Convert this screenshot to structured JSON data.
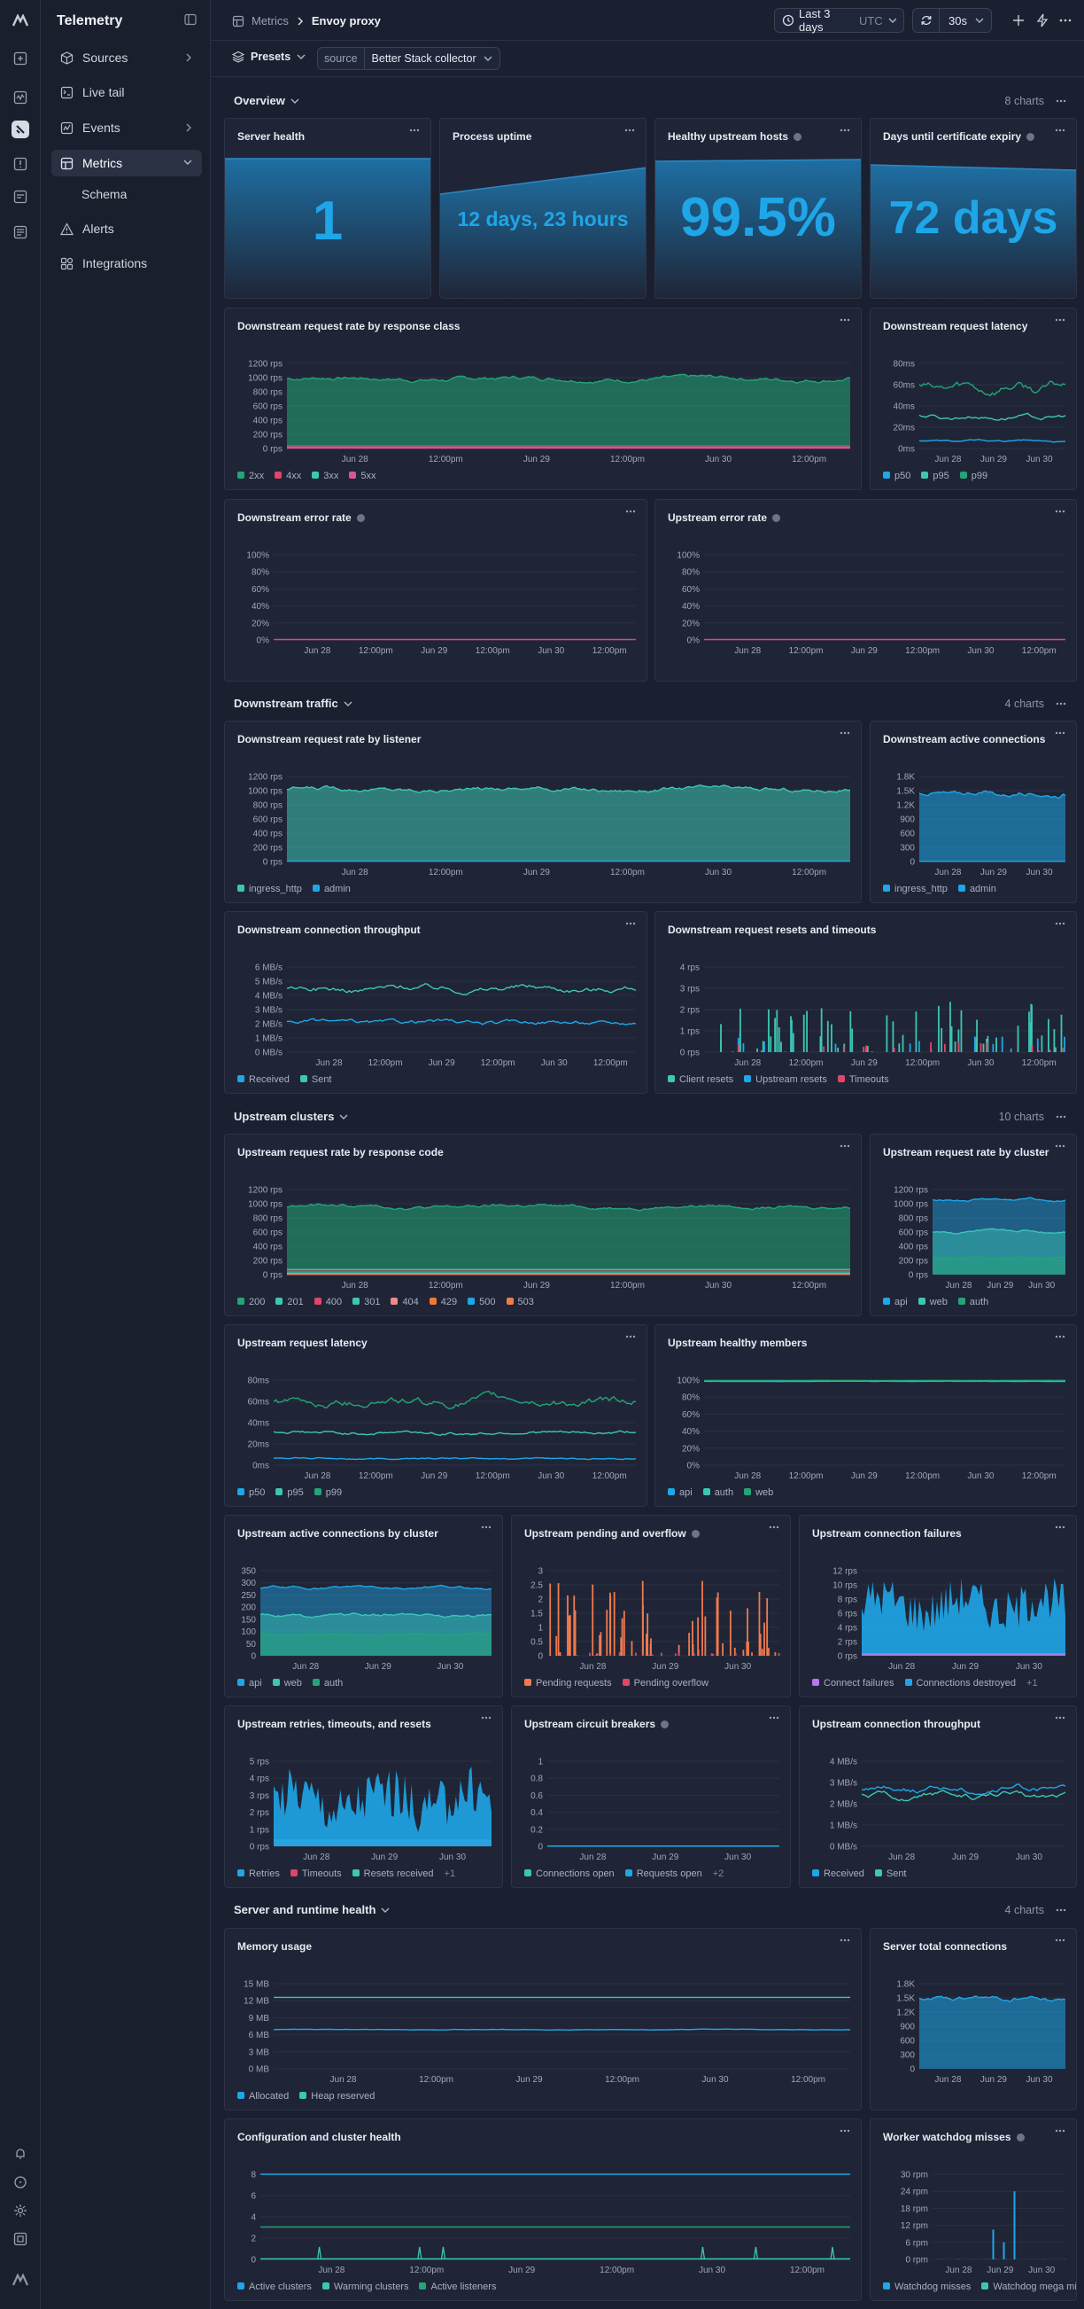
{
  "app": {
    "name": "Telemetry"
  },
  "sidebar": {
    "items": [
      {
        "label": "Sources"
      },
      {
        "label": "Live tail"
      },
      {
        "label": "Events"
      },
      {
        "label": "Metrics"
      },
      {
        "label": "Schema"
      },
      {
        "label": "Alerts"
      },
      {
        "label": "Integrations"
      }
    ]
  },
  "breadcrumb": {
    "parent": "Metrics",
    "current": "Envoy proxy"
  },
  "toolbar": {
    "timerange": "Last 3 days",
    "timezone": "UTC",
    "refresh": "30s"
  },
  "presets": {
    "label": "Presets",
    "filter_key": "source",
    "filter_value": "Better Stack collector"
  },
  "sections": [
    {
      "title": "Overview",
      "count": "8 charts"
    },
    {
      "title": "Downstream traffic",
      "count": "4 charts"
    },
    {
      "title": "Upstream clusters",
      "count": "10 charts"
    },
    {
      "title": "Server and runtime health",
      "count": "4 charts"
    }
  ],
  "stats": [
    {
      "title": "Server health",
      "value": "1"
    },
    {
      "title": "Process uptime",
      "value": "12 days, 23 hours"
    },
    {
      "title": "Healthy upstream hosts",
      "value": "99.5%"
    },
    {
      "title": "Days until certificate expiry",
      "value": "72 days"
    }
  ],
  "colors": {
    "green": "#23a577",
    "teal": "#3cc6b4",
    "blue": "#1ea6e8",
    "red": "#e0456a",
    "pink": "#d8568c",
    "orange": "#f07a4e",
    "purple": "#b478e8",
    "dark": "#2b3042"
  },
  "charts": [
    {
      "id": "c_drr",
      "title": "Downstream request rate by response class",
      "info": false,
      "type": "area",
      "yticks": [
        "1200 rps",
        "1000 rps",
        "800 rps",
        "600 rps",
        "400 rps",
        "200 rps",
        "0 rps"
      ],
      "xticks": [
        "Jun 28",
        "12:00pm",
        "Jun 29",
        "12:00pm",
        "Jun 30",
        "12:00pm"
      ],
      "series": [
        {
          "name": "2xx",
          "color": "#23a577",
          "level": 0.82,
          "noise": 0.05,
          "fill": true
        },
        {
          "name": "4xx",
          "color": "#e0456a",
          "level": 0.03,
          "noise": 0,
          "fill": false
        },
        {
          "name": "3xx",
          "color": "#3cc6b4",
          "level": 0.01,
          "noise": 0,
          "fill": false
        },
        {
          "name": "5xx",
          "color": "#d8568c",
          "level": 0.005,
          "noise": 0,
          "fill": false
        }
      ]
    },
    {
      "id": "c_drl",
      "title": "Downstream request latency",
      "info": false,
      "type": "line",
      "yticks": [
        "80ms",
        "60ms",
        "40ms",
        "20ms",
        "0ms"
      ],
      "xticks": [
        "Jun 28",
        "Jun 29",
        "Jun 30"
      ],
      "series": [
        {
          "name": "p50",
          "color": "#1ea6e8",
          "level": 0.09,
          "noise": 0.02,
          "fill": false
        },
        {
          "name": "p95",
          "color": "#3cc6b4",
          "level": 0.37,
          "noise": 0.05,
          "fill": false
        },
        {
          "name": "p99",
          "color": "#23a577",
          "level": 0.72,
          "noise": 0.12,
          "fill": false
        }
      ]
    },
    {
      "id": "c_der",
      "title": "Downstream error rate",
      "info": true,
      "type": "line",
      "yticks": [
        "100%",
        "80%",
        "60%",
        "40%",
        "20%",
        "0%"
      ],
      "xticks": [
        "Jun 28",
        "12:00pm",
        "Jun 29",
        "12:00pm",
        "Jun 30",
        "12:00pm"
      ],
      "series": [
        {
          "name": "",
          "color": "#e0456a",
          "level": 0.005,
          "noise": 0,
          "fill": false
        }
      ]
    },
    {
      "id": "c_uer",
      "title": "Upstream error rate",
      "info": true,
      "type": "line",
      "yticks": [
        "100%",
        "80%",
        "60%",
        "40%",
        "20%",
        "0%"
      ],
      "xticks": [
        "Jun 28",
        "12:00pm",
        "Jun 29",
        "12:00pm",
        "Jun 30",
        "12:00pm"
      ],
      "series": [
        {
          "name": "",
          "color": "#e0456a",
          "level": 0.005,
          "noise": 0,
          "fill": false
        }
      ]
    },
    {
      "id": "c_drl2",
      "title": "Downstream request rate by listener",
      "info": false,
      "type": "area",
      "yticks": [
        "1200 rps",
        "1000 rps",
        "800 rps",
        "600 rps",
        "400 rps",
        "200 rps",
        "0 rps"
      ],
      "xticks": [
        "Jun 28",
        "12:00pm",
        "Jun 29",
        "12:00pm",
        "Jun 30",
        "12:00pm"
      ],
      "series": [
        {
          "name": "ingress_http",
          "color": "#3cc6b4",
          "level": 0.85,
          "noise": 0.05,
          "fill": true
        },
        {
          "name": "admin",
          "color": "#1ea6e8",
          "level": 0.005,
          "noise": 0,
          "fill": false
        }
      ]
    },
    {
      "id": "c_dac",
      "title": "Downstream active connections",
      "info": false,
      "type": "area",
      "yticks": [
        "1.8K",
        "1.5K",
        "1.2K",
        "900",
        "600",
        "300",
        "0"
      ],
      "xticks": [
        "Jun 28",
        "Jun 29",
        "Jun 30"
      ],
      "series": [
        {
          "name": "ingress_http",
          "color": "#1ea6e8",
          "level": 0.8,
          "noise": 0.06,
          "fill": true
        },
        {
          "name": "admin",
          "color": "#1ea6e8",
          "level": 0.003,
          "noise": 0,
          "fill": false
        }
      ]
    },
    {
      "id": "c_dct",
      "title": "Downstream connection throughput",
      "info": false,
      "type": "line",
      "yticks": [
        "6 MB/s",
        "5 MB/s",
        "4 MB/s",
        "3 MB/s",
        "2 MB/s",
        "1 MB/s",
        "0 MB/s"
      ],
      "xticks": [
        "Jun 28",
        "12:00pm",
        "Jun 29",
        "12:00pm",
        "Jun 30",
        "12:00pm"
      ],
      "series": [
        {
          "name": "Received",
          "color": "#1ea6e8",
          "level": 0.35,
          "noise": 0.05,
          "fill": false
        },
        {
          "name": "Sent",
          "color": "#3cc6b4",
          "level": 0.75,
          "noise": 0.07,
          "fill": false
        }
      ]
    },
    {
      "id": "c_drrt",
      "title": "Downstream request resets and timeouts",
      "info": false,
      "type": "spike",
      "yticks": [
        "4 rps",
        "3 rps",
        "2 rps",
        "1 rps",
        "0 rps"
      ],
      "xticks": [
        "Jun 28",
        "12:00pm",
        "Jun 29",
        "12:00pm",
        "Jun 30",
        "12:00pm"
      ],
      "series": [
        {
          "name": "Client resets",
          "color": "#3cc6b4",
          "level": 0.6,
          "noise": 0,
          "fill": true
        },
        {
          "name": "Upstream resets",
          "color": "#1ea6e8",
          "level": 0.3,
          "noise": 0,
          "fill": true
        },
        {
          "name": "Timeouts",
          "color": "#e0456a",
          "level": 0.15,
          "noise": 0,
          "fill": true
        }
      ]
    },
    {
      "id": "c_urrc",
      "title": "Upstream request rate by response code",
      "info": false,
      "type": "area",
      "yticks": [
        "1200 rps",
        "1000 rps",
        "800 rps",
        "600 rps",
        "400 rps",
        "200 rps",
        "0 rps"
      ],
      "xticks": [
        "Jun 28",
        "12:00pm",
        "Jun 29",
        "12:00pm",
        "Jun 30",
        "12:00pm"
      ],
      "series": [
        {
          "name": "200",
          "color": "#23a577",
          "level": 0.8,
          "noise": 0.04,
          "fill": true
        },
        {
          "name": "201",
          "color": "#3cc6b4",
          "level": 0.06,
          "noise": 0,
          "fill": false
        },
        {
          "name": "400",
          "color": "#e0456a",
          "level": 0.04,
          "noise": 0,
          "fill": false
        },
        {
          "name": "301",
          "color": "#3cc6b4",
          "level": 0.02,
          "noise": 0,
          "fill": false
        },
        {
          "name": "404",
          "color": "#f08a8a",
          "level": 0.01,
          "noise": 0,
          "fill": false
        },
        {
          "name": "429",
          "color": "#f07a2e",
          "level": 0.005,
          "noise": 0,
          "fill": false
        },
        {
          "name": "500",
          "color": "#1ea6e8",
          "level": 0.003,
          "noise": 0,
          "fill": false
        },
        {
          "name": "503",
          "color": "#f07a4e",
          "level": 0.002,
          "noise": 0,
          "fill": false
        }
      ]
    },
    {
      "id": "c_urcl",
      "title": "Upstream request rate by cluster",
      "info": false,
      "type": "stack",
      "yticks": [
        "1200 rps",
        "1000 rps",
        "800 rps",
        "600 rps",
        "400 rps",
        "200 rps",
        "0 rps"
      ],
      "xticks": [
        "Jun 28",
        "Jun 29",
        "Jun 30"
      ],
      "series": [
        {
          "name": "api",
          "color": "#1ea6e8",
          "level": 0.88,
          "noise": 0.03,
          "fill": true
        },
        {
          "name": "web",
          "color": "#3cc6b4",
          "level": 0.5,
          "noise": 0.03,
          "fill": true
        },
        {
          "name": "auth",
          "color": "#23a577",
          "level": 0.2,
          "noise": 0.02,
          "fill": true
        }
      ]
    },
    {
      "id": "c_url",
      "title": "Upstream request latency",
      "info": false,
      "type": "line",
      "yticks": [
        "80ms",
        "60ms",
        "40ms",
        "20ms",
        "0ms"
      ],
      "xticks": [
        "Jun 28",
        "12:00pm",
        "Jun 29",
        "12:00pm",
        "Jun 30",
        "12:00pm"
      ],
      "series": [
        {
          "name": "p50",
          "color": "#1ea6e8",
          "level": 0.08,
          "noise": 0.02,
          "fill": false
        },
        {
          "name": "p95",
          "color": "#3cc6b4",
          "level": 0.38,
          "noise": 0.04,
          "fill": false
        },
        {
          "name": "p99",
          "color": "#23a577",
          "level": 0.75,
          "noise": 0.1,
          "fill": false
        }
      ]
    },
    {
      "id": "c_uhm",
      "title": "Upstream healthy members",
      "info": false,
      "type": "line",
      "yticks": [
        "100%",
        "80%",
        "60%",
        "40%",
        "20%",
        "0%"
      ],
      "xticks": [
        "Jun 28",
        "12:00pm",
        "Jun 29",
        "12:00pm",
        "Jun 30",
        "12:00pm"
      ],
      "series": [
        {
          "name": "api",
          "color": "#1ea6e8",
          "level": 0.985,
          "noise": 0.003,
          "fill": false
        },
        {
          "name": "auth",
          "color": "#3cc6b4",
          "level": 0.99,
          "noise": 0.003,
          "fill": false
        },
        {
          "name": "web",
          "color": "#23a577",
          "level": 0.995,
          "noise": 0.002,
          "fill": false
        }
      ]
    },
    {
      "id": "c_uacc",
      "title": "Upstream active connections by cluster",
      "info": false,
      "type": "stack",
      "yticks": [
        "350",
        "300",
        "250",
        "200",
        "150",
        "100",
        "50",
        "0"
      ],
      "xticks": [
        "Jun 28",
        "Jun 29",
        "Jun 30"
      ],
      "series": [
        {
          "name": "api",
          "color": "#1ea6e8",
          "level": 0.8,
          "noise": 0.03,
          "fill": true
        },
        {
          "name": "web",
          "color": "#3cc6b4",
          "level": 0.48,
          "noise": 0.04,
          "fill": true
        },
        {
          "name": "auth",
          "color": "#23a577",
          "level": 0.25,
          "noise": 0.02,
          "fill": true
        }
      ]
    },
    {
      "id": "c_upo",
      "title": "Upstream pending and overflow",
      "info": true,
      "type": "spike",
      "yticks": [
        "3",
        "2.5",
        "2",
        "1.5",
        "1",
        "0.5",
        "0"
      ],
      "xticks": [
        "Jun 28",
        "Jun 29",
        "Jun 30"
      ],
      "series": [
        {
          "name": "Pending requests",
          "color": "#f07a4e",
          "level": 0.9,
          "noise": 0,
          "fill": true
        },
        {
          "name": "Pending overflow",
          "color": "#e0456a",
          "level": 0.05,
          "noise": 0,
          "fill": true
        }
      ]
    },
    {
      "id": "c_ucf",
      "title": "Upstream connection failures",
      "info": false,
      "type": "dense",
      "yticks": [
        "12 rps",
        "10 rps",
        "8 rps",
        "6 rps",
        "4 rps",
        "2 rps",
        "0 rps"
      ],
      "xticks": [
        "Jun 28",
        "Jun 29",
        "Jun 30"
      ],
      "series": [
        {
          "name": "Connect failures",
          "color": "#b478e8",
          "level": 0.03,
          "noise": 0,
          "fill": true
        },
        {
          "name": "Connections destroyed",
          "color": "#1ea6e8",
          "level": 0.6,
          "noise": 0.25,
          "fill": true
        }
      ],
      "more": "+1"
    },
    {
      "id": "c_urtr",
      "title": "Upstream retries, timeouts, and resets",
      "info": false,
      "type": "dense",
      "yticks": [
        "5 rps",
        "4 rps",
        "3 rps",
        "2 rps",
        "1 rps",
        "0 rps"
      ],
      "xticks": [
        "Jun 28",
        "Jun 29",
        "Jun 30"
      ],
      "series": [
        {
          "name": "Retries",
          "color": "#1ea6e8",
          "level": 0.55,
          "noise": 0.3,
          "fill": true
        },
        {
          "name": "Timeouts",
          "color": "#e0456a",
          "level": 0.05,
          "noise": 0,
          "fill": true
        },
        {
          "name": "Resets received",
          "color": "#3cc6b4",
          "level": 0.08,
          "noise": 0,
          "fill": true
        }
      ],
      "more": "+1"
    },
    {
      "id": "c_ucb",
      "title": "Upstream circuit breakers",
      "info": true,
      "type": "line",
      "yticks": [
        "1",
        "0.8",
        "0.6",
        "0.4",
        "0.2",
        "0"
      ],
      "xticks": [
        "Jun 28",
        "Jun 29",
        "Jun 30"
      ],
      "series": [
        {
          "name": "Connections open",
          "color": "#3cc6b4",
          "level": 0.003,
          "noise": 0,
          "fill": false
        },
        {
          "name": "Requests open",
          "color": "#1ea6e8",
          "level": 0.002,
          "noise": 0,
          "fill": false
        }
      ],
      "more": "+2"
    },
    {
      "id": "c_uct",
      "title": "Upstream connection throughput",
      "info": false,
      "type": "line",
      "yticks": [
        "4 MB/s",
        "3 MB/s",
        "2 MB/s",
        "1 MB/s",
        "0 MB/s"
      ],
      "xticks": [
        "Jun 28",
        "Jun 29",
        "Jun 30"
      ],
      "series": [
        {
          "name": "Received",
          "color": "#1ea6e8",
          "level": 0.68,
          "noise": 0.07,
          "fill": false
        },
        {
          "name": "Sent",
          "color": "#3cc6b4",
          "level": 0.6,
          "noise": 0.07,
          "fill": false
        }
      ]
    },
    {
      "id": "c_mem",
      "title": "Memory usage",
      "info": false,
      "type": "line",
      "yticks": [
        "15 MB",
        "12 MB",
        "9 MB",
        "6 MB",
        "3 MB",
        "0 MB"
      ],
      "xticks": [
        "Jun 28",
        "12:00pm",
        "Jun 29",
        "12:00pm",
        "Jun 30",
        "12:00pm"
      ],
      "series": [
        {
          "name": "Allocated",
          "color": "#1ea6e8",
          "level": 0.46,
          "noise": 0.006,
          "fill": false
        },
        {
          "name": "Heap reserved",
          "color": "#3cc6b4",
          "level": 0.84,
          "noise": 0,
          "fill": false
        }
      ]
    },
    {
      "id": "c_stc",
      "title": "Server total connections",
      "info": false,
      "type": "area",
      "yticks": [
        "1.8K",
        "1.5K",
        "1.2K",
        "900",
        "600",
        "300",
        "0"
      ],
      "xticks": [
        "Jun 28",
        "Jun 29",
        "Jun 30"
      ],
      "series": [
        {
          "name": "",
          "color": "#1ea6e8",
          "level": 0.82,
          "noise": 0.06,
          "fill": true
        }
      ]
    },
    {
      "id": "c_cch",
      "title": "Configuration and cluster health",
      "info": false,
      "type": "line",
      "yticks": [
        "8",
        "6",
        "4",
        "2",
        "0"
      ],
      "xticks": [
        "Jun 28",
        "12:00pm",
        "Jun 29",
        "12:00pm",
        "Jun 30",
        "12:00pm"
      ],
      "series": [
        {
          "name": "Active clusters",
          "color": "#1ea6e8",
          "level": 1.0,
          "noise": 0,
          "fill": false
        },
        {
          "name": "Warming clusters",
          "color": "#3cc6b4",
          "level": 0.005,
          "noise": 0,
          "fill": false,
          "spikes": true
        },
        {
          "name": "Active listeners",
          "color": "#23a577",
          "level": 0.38,
          "noise": 0,
          "fill": false
        }
      ]
    },
    {
      "id": "c_wwm",
      "title": "Worker watchdog misses",
      "info": true,
      "type": "spike",
      "yticks": [
        "30 rpm",
        "24 rpm",
        "18 rpm",
        "12 rpm",
        "6 rpm",
        "0 rpm"
      ],
      "xticks": [
        "Jun 28",
        "Jun 29",
        "Jun 30"
      ],
      "series": [
        {
          "name": "Watchdog misses",
          "color": "#1ea6e8",
          "level": 0.8,
          "noise": 0,
          "fill": true,
          "sparse": true
        },
        {
          "name": "Watchdog mega misses",
          "color": "#3cc6b4",
          "level": 0.003,
          "noise": 0,
          "fill": false
        }
      ]
    }
  ]
}
